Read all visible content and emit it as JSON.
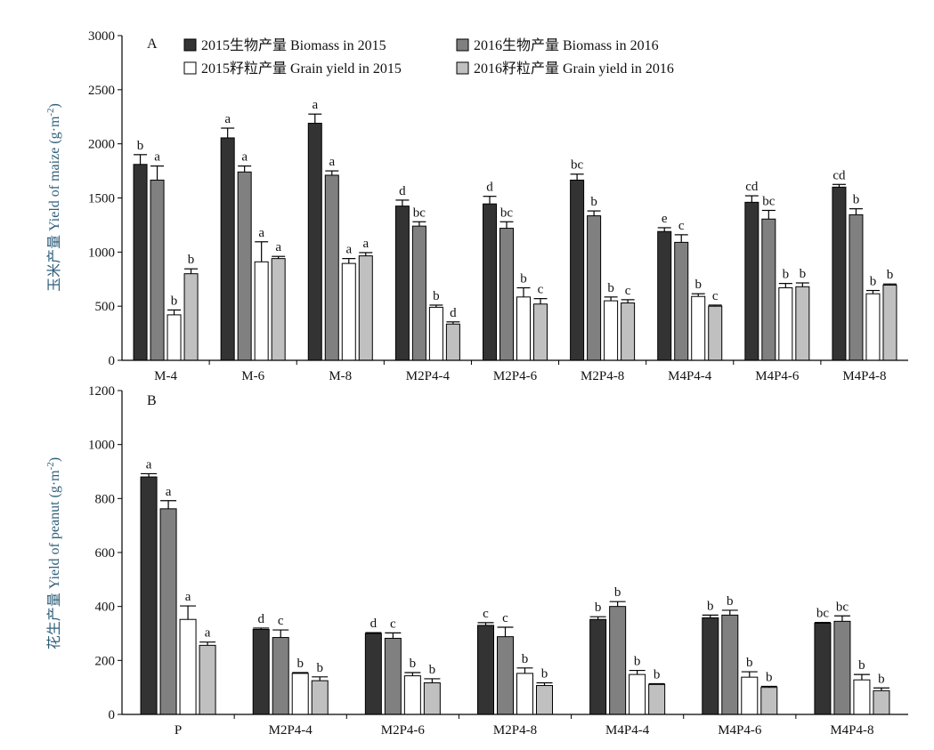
{
  "chart_data": [
    {
      "type": "bar",
      "panel_label": "A",
      "ylabel": "玉米产量 Yield of maize (g·m",
      "ylabel_sup": "-2",
      "ylabel_close": ")",
      "ylim": [
        0,
        3000
      ],
      "yticks": [
        "0",
        "500",
        "1000",
        "1500",
        "2000",
        "2500",
        "3000"
      ],
      "categories": [
        "M-4",
        "M-6",
        "M-8",
        "M2P4-4",
        "M2P4-6",
        "M2P4-8",
        "M4P4-4",
        "M4P4-6",
        "M4P4-8"
      ],
      "legend_position": "top",
      "series": [
        {
          "name": "2015生物产量 Biomass in 2015",
          "color": "#333333",
          "values": [
            1810,
            2055,
            2190,
            1425,
            1445,
            1665,
            1190,
            1460,
            1600
          ],
          "errors": [
            90,
            90,
            85,
            55,
            70,
            55,
            35,
            60,
            25
          ],
          "labels": [
            "b",
            "a",
            "a",
            "d",
            "d",
            "bc",
            "e",
            "cd",
            "cd"
          ]
        },
        {
          "name": "2016生物产量 Biomass in 2016",
          "color": "#808080",
          "values": [
            1665,
            1740,
            1710,
            1240,
            1220,
            1335,
            1090,
            1305,
            1345
          ],
          "errors": [
            130,
            55,
            40,
            40,
            60,
            45,
            70,
            80,
            55
          ],
          "labels": [
            "a",
            "a",
            "a",
            "bc",
            "bc",
            "b",
            "c",
            "bc",
            "b"
          ]
        },
        {
          "name": "2015籽粒产量 Grain yield in 2015",
          "color": "#ffffff",
          "values": [
            420,
            910,
            895,
            490,
            585,
            550,
            590,
            670,
            615
          ],
          "errors": [
            45,
            185,
            45,
            20,
            85,
            35,
            25,
            40,
            30
          ],
          "labels": [
            "b",
            "a",
            "a",
            "b",
            "b",
            "b",
            "b",
            "b",
            "b"
          ]
        },
        {
          "name": "2016籽粒产量 Grain yield in 2016",
          "color": "#c0c0c0",
          "values": [
            800,
            940,
            965,
            335,
            520,
            530,
            500,
            680,
            695
          ],
          "errors": [
            45,
            20,
            30,
            20,
            50,
            30,
            10,
            35,
            10
          ],
          "labels": [
            "b",
            "a",
            "a",
            "d",
            "c",
            "c",
            "c",
            "b",
            "b"
          ]
        }
      ]
    },
    {
      "type": "bar",
      "panel_label": "B",
      "ylabel": "花生产量 Yield of peanut (g·m",
      "ylabel_sup": "-2",
      "ylabel_close": ")",
      "ylim": [
        0,
        1200
      ],
      "yticks": [
        "0",
        "200",
        "400",
        "600",
        "800",
        "1000",
        "1200"
      ],
      "categories": [
        "P",
        "M2P4-4",
        "M2P4-6",
        "M2P4-8",
        "M4P4-4",
        "M4P4-6",
        "M4P4-8"
      ],
      "series": [
        {
          "name": "2015生物产量 Biomass in 2015",
          "color": "#333333",
          "values": [
            880,
            315,
            300,
            330,
            352,
            358,
            338
          ],
          "errors": [
            12,
            5,
            3,
            10,
            10,
            10,
            3
          ],
          "labels": [
            "a",
            "d",
            "d",
            "c",
            "b",
            "b",
            "bc"
          ]
        },
        {
          "name": "2016生物产量 Biomass in 2016",
          "color": "#808080",
          "values": [
            762,
            285,
            282,
            288,
            400,
            368,
            345
          ],
          "errors": [
            30,
            28,
            20,
            35,
            18,
            18,
            20
          ],
          "labels": [
            "a",
            "c",
            "c",
            "c",
            "b",
            "b",
            "bc"
          ]
        },
        {
          "name": "2015籽粒产量 Grain yield in 2015",
          "color": "#ffffff",
          "values": [
            352,
            152,
            143,
            152,
            148,
            138,
            128
          ],
          "errors": [
            50,
            3,
            12,
            20,
            15,
            20,
            20
          ],
          "labels": [
            "a",
            "b",
            "b",
            "b",
            "b",
            "b",
            "b"
          ]
        },
        {
          "name": "2016籽粒产量 Grain yield in 2016",
          "color": "#c0c0c0",
          "values": [
            256,
            125,
            117,
            107,
            111,
            100,
            88
          ],
          "errors": [
            12,
            14,
            15,
            10,
            3,
            4,
            10
          ],
          "labels": [
            "a",
            "b",
            "b",
            "b",
            "b",
            "b",
            "b"
          ]
        }
      ]
    }
  ]
}
